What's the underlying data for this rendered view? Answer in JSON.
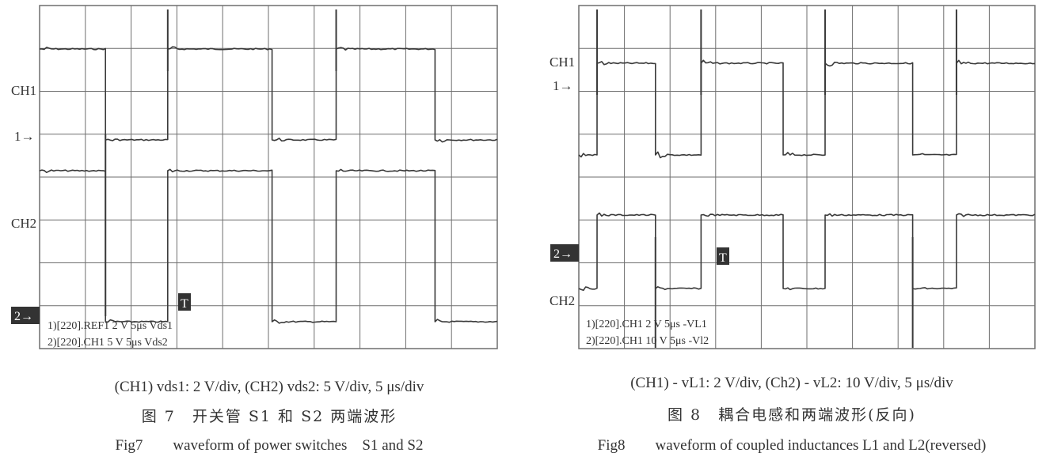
{
  "colors": {
    "grid": "#6e6e6e",
    "trace": "#3a3a3a",
    "marker_bg": "#333333",
    "marker_fg": "#ffffff"
  },
  "chart_data": [
    {
      "type": "line",
      "label_ch1": "CH1",
      "label_ch2": "CH2",
      "marker_1": "1→",
      "marker_2": "2→",
      "trigger": "T",
      "info_1": "1)[220].REF1 2 V 5μs Vds1",
      "info_2": "2)[220].CH1 5 V 5μs Vds2",
      "grid_divisions": [
        10,
        8
      ],
      "series": [
        {
          "transitions_time_us": [
            0,
            3.6,
            7.0,
            12.7,
            16.2,
            21.6,
            25.0
          ],
          "starts_high": true
        },
        {
          "transitions_time_us": [
            0,
            3.6,
            7.0,
            12.7,
            16.2,
            21.6,
            25.0
          ],
          "starts_high": false
        }
      ],
      "caption_1": "(CH1) vds1: 2 V/div, (CH2) vds2: 5 V/div, 5 μs/div",
      "caption_2": "图 7　开关管 S1 和 S2 两端波形",
      "caption_3": "Fig7　　waveform of power switches　S1 and S2"
    },
    {
      "type": "line",
      "label_ch1": "CH1",
      "label_ch2": "CH2",
      "marker_1": "1→",
      "marker_2": "2→",
      "trigger": "T",
      "info_1": "1)[220].CH1 2 V 5μs -VL1",
      "info_2": "2)[220].CH1 10 V 5μs -Vl2",
      "grid_divisions": [
        10,
        8
      ],
      "series": [
        {
          "transitions_time_us": [
            0,
            1.0,
            4.2,
            6.7,
            11.2,
            13.5,
            18.3,
            20.7,
            25.0
          ],
          "starts_high": false
        },
        {
          "transitions_time_us": [
            0,
            1.0,
            4.2,
            6.7,
            11.2,
            13.5,
            18.3,
            20.7,
            25.0
          ],
          "starts_high": false
        }
      ],
      "caption_1": "(CH1) - vL1: 2 V/div, (Ch2) - vL2: 10 V/div, 5 μs/div",
      "caption_2": "图 8　耦合电感和两端波形(反向)",
      "caption_3": "Fig8　　waveform of coupled inductances L1 and L2(reversed)"
    }
  ]
}
